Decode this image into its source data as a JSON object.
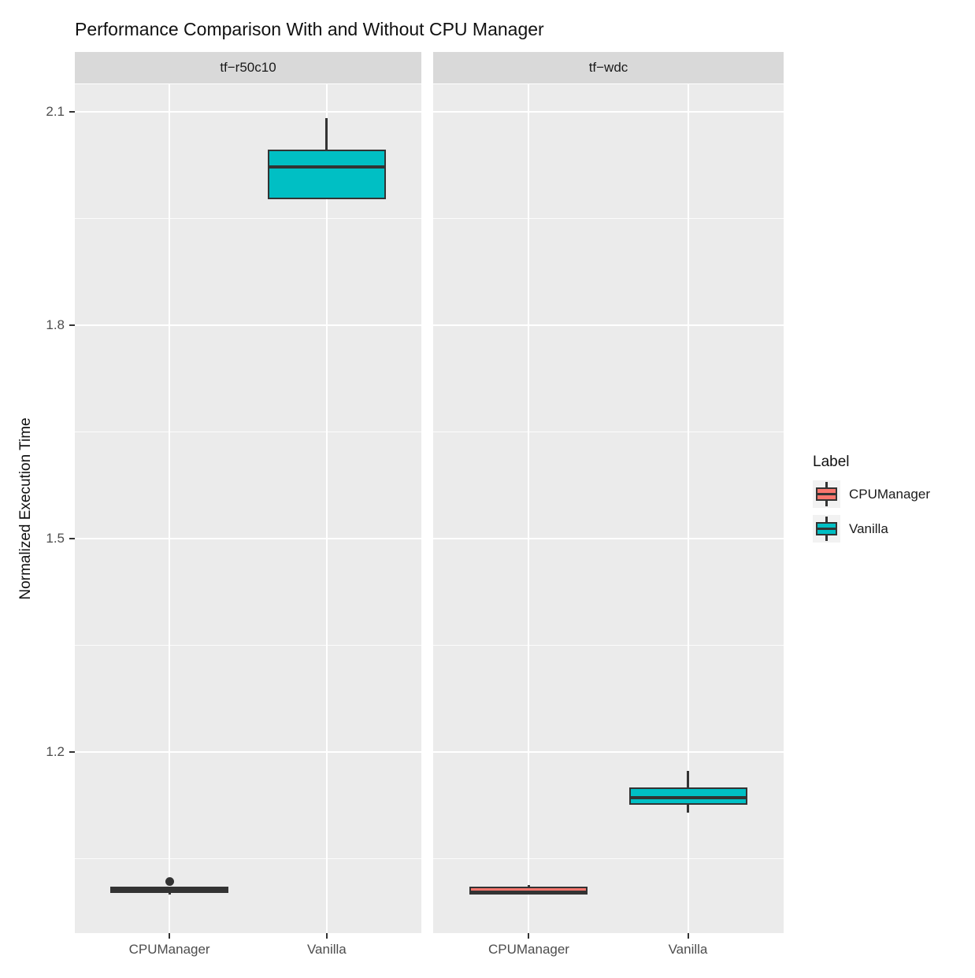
{
  "title": "Performance Comparison With and Without CPU Manager",
  "ylabel": "Normalized Execution Time",
  "legend": {
    "title": "Label",
    "items": [
      {
        "label": "CPUManager",
        "color": "#F8766D"
      },
      {
        "label": "Vanilla",
        "color": "#00BFC4"
      }
    ]
  },
  "colors": {
    "panel_background": "#EBEBEB",
    "strip_background": "#D9D9D9",
    "gridline": "#FFFFFF",
    "box_outline": "#333333",
    "cpumanager_fill": "#F8766D",
    "vanilla_fill": "#00BFC4",
    "tick_text": "#4D4D4D"
  },
  "chart_data": {
    "type": "boxplot",
    "title": "Performance Comparison With and Without CPU Manager",
    "ylabel": "Normalized Execution Time",
    "legend_title": "Label",
    "legend_position": "right",
    "grid": true,
    "categories": [
      "CPUManager",
      "Vanilla"
    ],
    "y_ticks": [
      2.1,
      1.8,
      1.5,
      1.2
    ],
    "y_tick_labels": [
      "2.1",
      "1.8",
      "1.5",
      "1.2"
    ],
    "y_minor_gridlines": [
      1.95,
      1.65,
      1.35,
      1.05
    ],
    "ylim": [
      0.945,
      2.139
    ],
    "facets": [
      {
        "label": "tf−r50c10",
        "boxes": [
          {
            "category": "CPUManager",
            "color": "#F8766D",
            "whisker_low": 0.999,
            "q1": 1.002,
            "median": 1.006,
            "q3": 1.01,
            "whisker_high": 1.01,
            "outliers": [
              1.018
            ]
          },
          {
            "category": "Vanilla",
            "color": "#00BFC4",
            "whisker_low": 1.977,
            "q1": 1.977,
            "median": 2.023,
            "q3": 2.047,
            "whisker_high": 2.091,
            "outliers": []
          }
        ]
      },
      {
        "label": "tf−wdc",
        "boxes": [
          {
            "category": "CPUManager",
            "color": "#F8766D",
            "whisker_low": 0.999,
            "q1": 0.999,
            "median": 1.003,
            "q3": 1.01,
            "whisker_high": 1.013,
            "outliers": []
          },
          {
            "category": "Vanilla",
            "color": "#00BFC4",
            "whisker_low": 1.114,
            "q1": 1.125,
            "median": 1.136,
            "q3": 1.15,
            "whisker_high": 1.173,
            "outliers": []
          }
        ]
      }
    ]
  }
}
